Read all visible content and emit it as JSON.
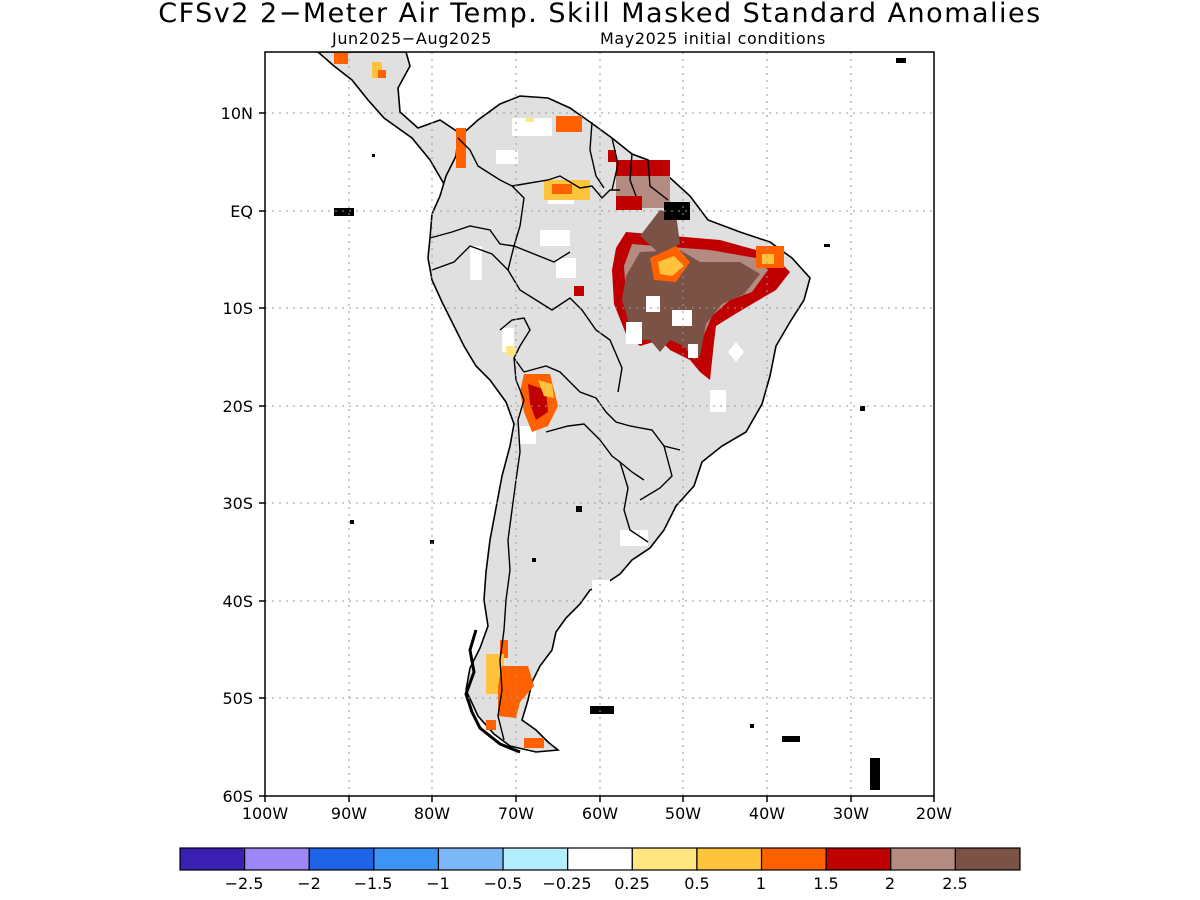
{
  "title": "CFSv2 2−Meter Air Temp. Skill Masked Standard Anomalies",
  "subtitle_period": "Jun2025−Aug2025",
  "subtitle_ic": "May2025 initial conditions",
  "map": {
    "region": "South America",
    "lon_range": [
      -100,
      -20
    ],
    "lat_range": [
      -60,
      5
    ],
    "y_ticks": [
      "10N",
      "EQ",
      "10S",
      "20S",
      "30S",
      "40S",
      "50S",
      "60S"
    ],
    "x_ticks": [
      "100W",
      "90W",
      "80W",
      "70W",
      "60W",
      "50W",
      "40W",
      "30W",
      "20W"
    ],
    "grid": "dotted",
    "land_masked_color": "#e0e0e0"
  },
  "colorbar": {
    "colors": [
      "#3a1fb3",
      "#9c87f5",
      "#1f63e6",
      "#3d94f5",
      "#7cb8f7",
      "#b2eefb",
      "#ffffff",
      "#ffe680",
      "#ffc33c",
      "#ff6000",
      "#c00000",
      "#b38b80",
      "#7a5246"
    ],
    "labels": [
      "−2.5",
      "−2",
      "−1.5",
      "−1",
      "−0.5",
      "−0.25",
      "0.25",
      "0.5",
      "1",
      "1.5",
      "2",
      "2.5"
    ]
  }
}
